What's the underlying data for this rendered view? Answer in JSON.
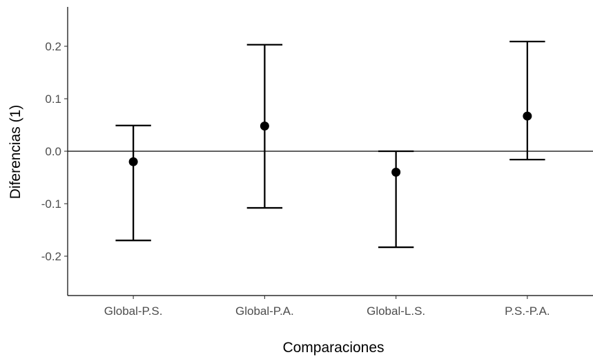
{
  "chart_data": {
    "type": "errorbar",
    "title": "",
    "xlabel": "Comparaciones",
    "ylabel": "Diferencias (1)",
    "categories": [
      "Global-P.S.",
      "Global-P.A.",
      "Global-L.S.",
      "P.S.-P.A."
    ],
    "estimates": [
      -0.02,
      0.048,
      -0.04,
      0.067
    ],
    "lower": [
      -0.17,
      -0.108,
      -0.183,
      -0.016
    ],
    "upper": [
      0.049,
      0.203,
      0.0,
      0.209
    ],
    "reference_line": 0.0,
    "ylim": [
      -0.275,
      0.275
    ],
    "yticks": [
      -0.2,
      -0.1,
      0.0,
      0.1,
      0.2
    ],
    "ytick_labels": [
      "-0.2",
      "-0.1",
      "0.0",
      "0.1",
      "0.2"
    ],
    "grid": false,
    "colors": {
      "marks": "#000000",
      "axis": "#000000",
      "tick_text": "#4d4d4d"
    }
  }
}
